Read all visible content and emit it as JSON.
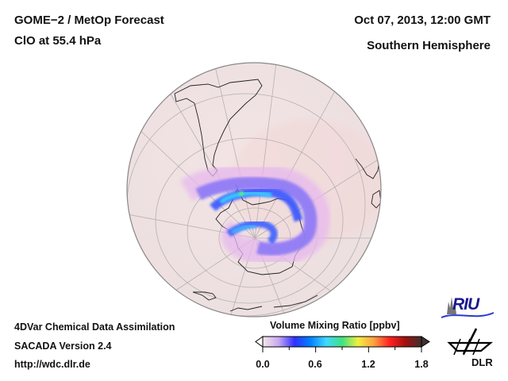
{
  "header": {
    "title_line1": "GOME−2 / MetOp Forecast",
    "title_line2": "ClO at 55.4 hPa",
    "date": "Oct 07, 2013, 12:00 GMT",
    "hemisphere": "Southern Hemisphere"
  },
  "footer": {
    "line1": "4DVar Chemical Data Assimilation",
    "line2": "SACADA Version 2.4",
    "line3": "http://wdc.dlr.de"
  },
  "colorbar": {
    "title": "Volume Mixing Ratio [ppbv]",
    "min": 0.0,
    "max": 1.8,
    "ticks": [
      "0.0",
      "0.6",
      "1.2",
      "1.8"
    ],
    "colors": [
      "#f5e8ea",
      "#c8a8f0",
      "#3030ff",
      "#0080ff",
      "#40d8ff",
      "#40e080",
      "#f0f040",
      "#ffa040",
      "#ff2020",
      "#a01010",
      "#403030"
    ]
  },
  "logos": {
    "riu": "RIU",
    "dlr": "DLR"
  },
  "map": {
    "projection": "orthographic",
    "background_color": "#f1e4e4",
    "feature": "ClO enhancement around Antarctic Peninsula"
  }
}
